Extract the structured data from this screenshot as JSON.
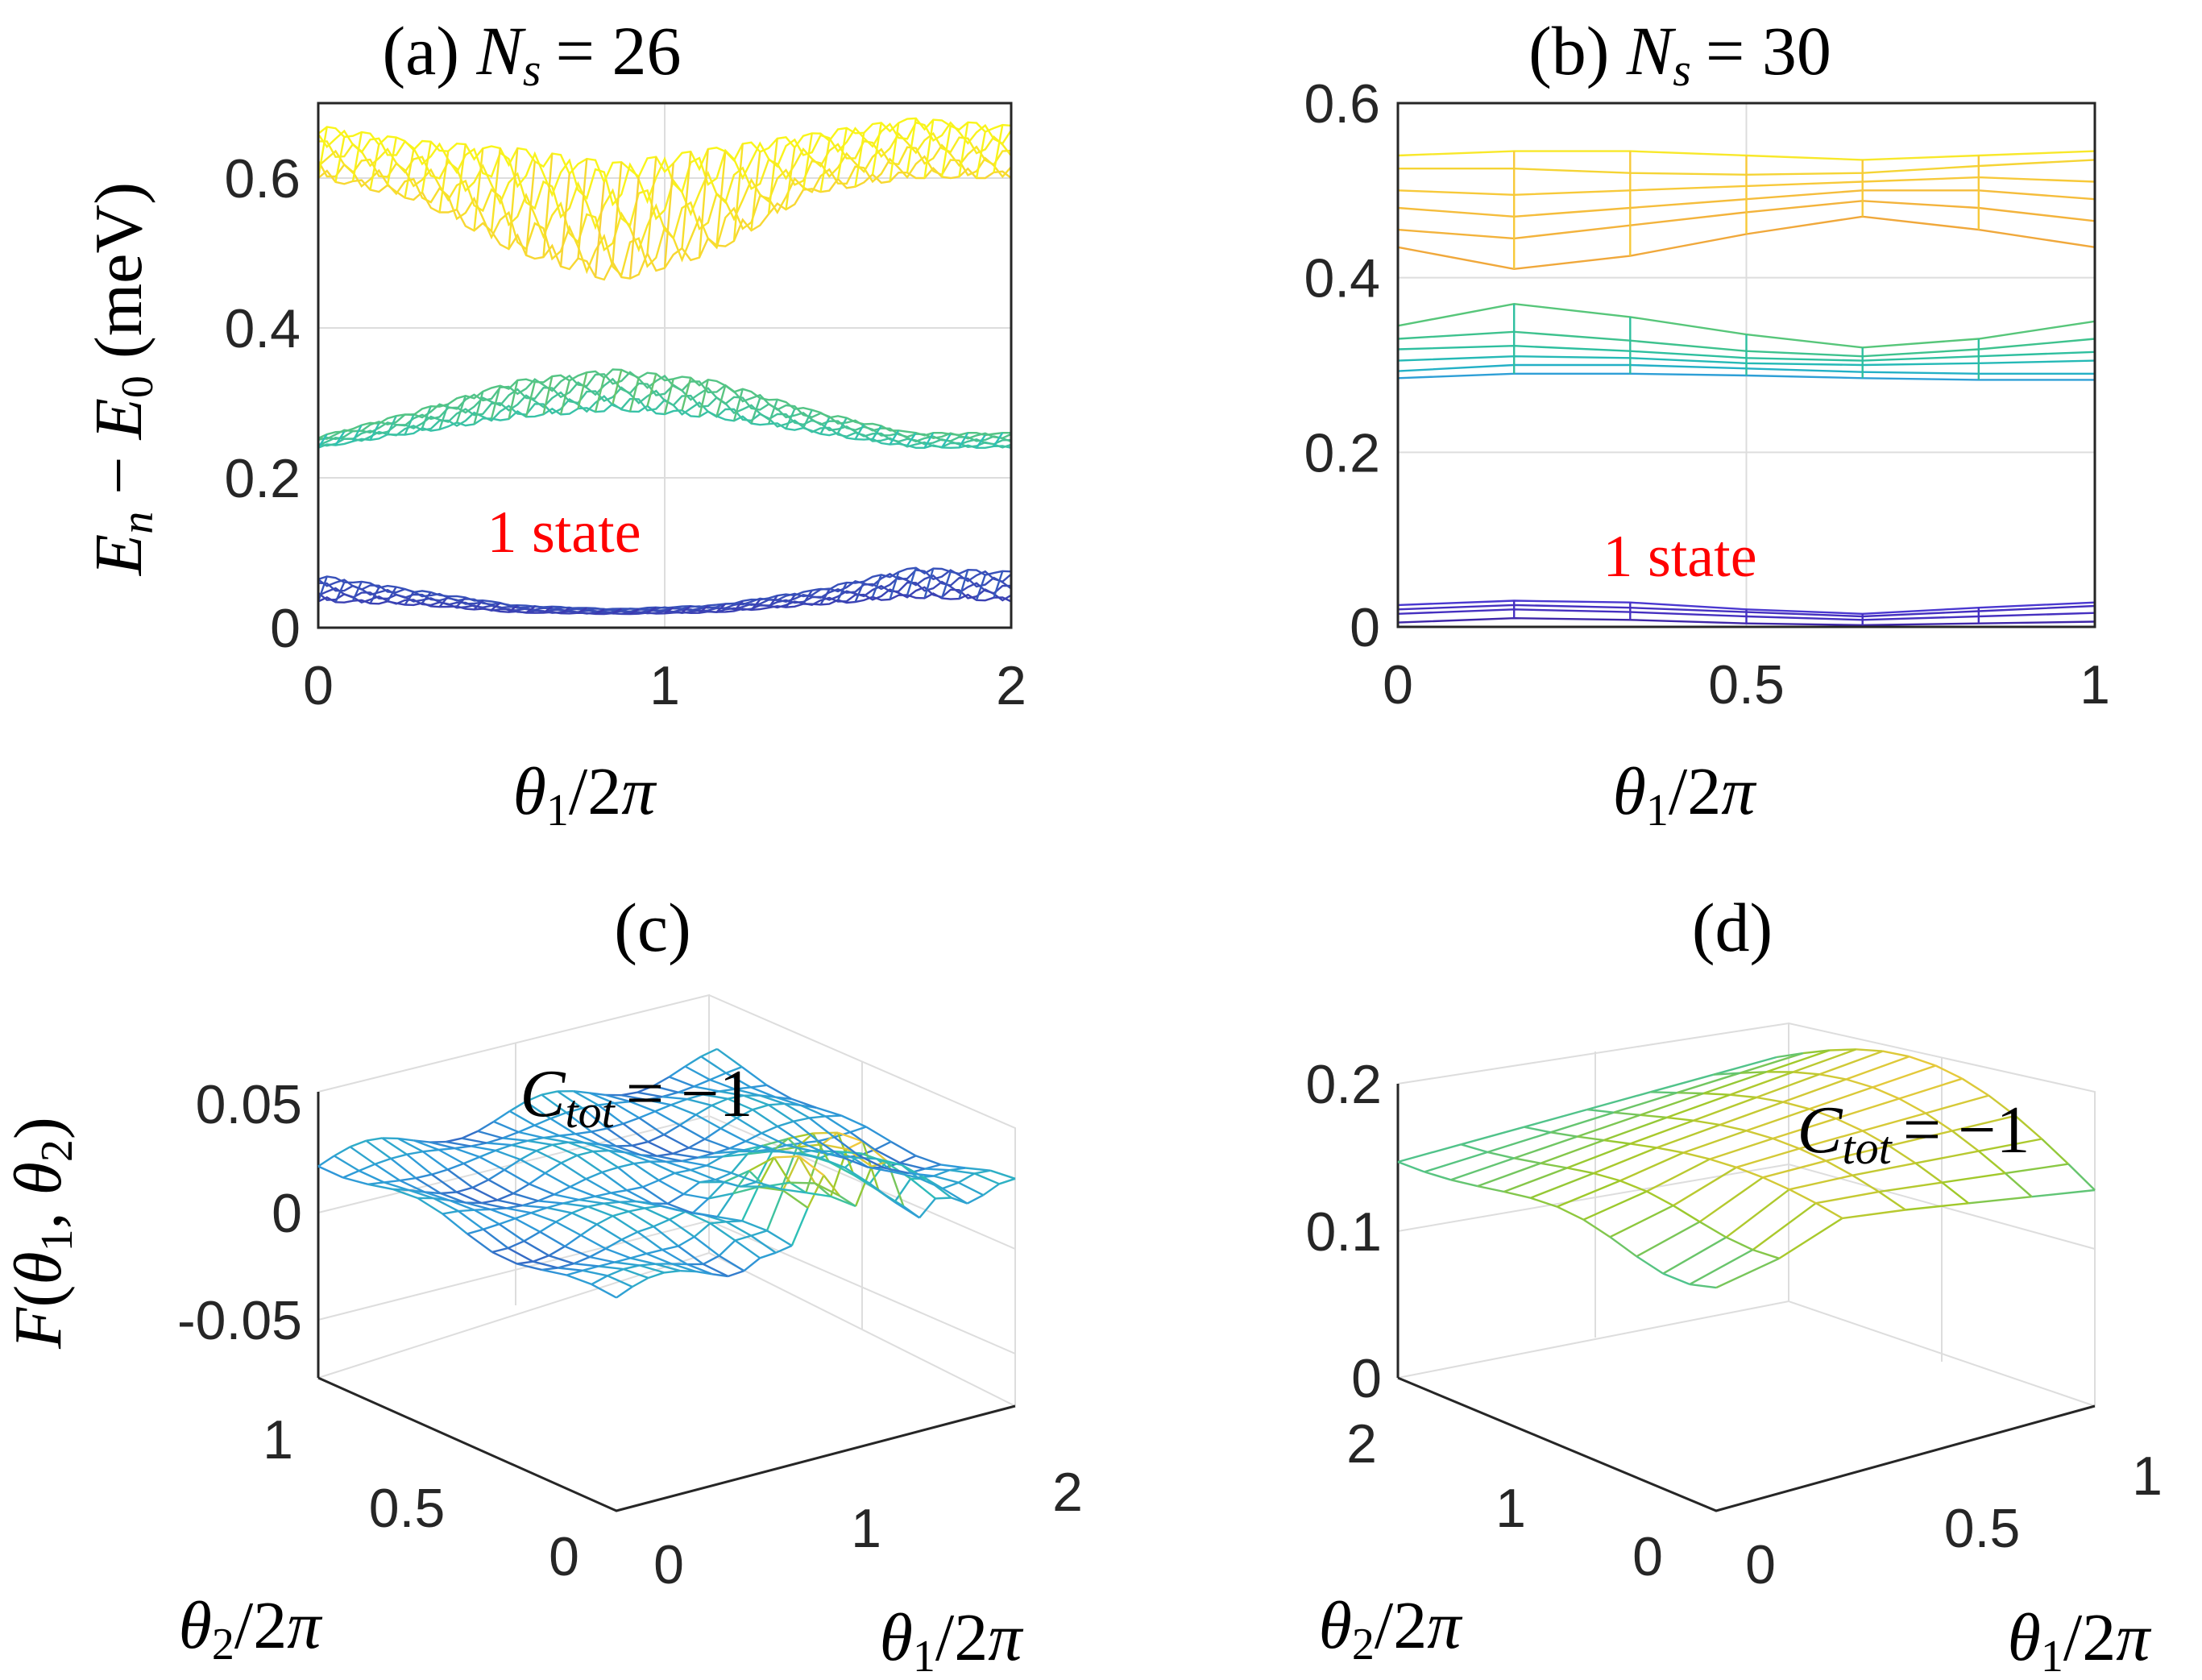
{
  "colors": {
    "low": "#3e26a8",
    "mid_low": "#2f9ad9",
    "mid": "#2ec1b4",
    "mid_high": "#9fc92a",
    "high": "#f6c93f",
    "top": "#f9f51a",
    "annotation": "#ff0000"
  },
  "chart_data": [
    {
      "id": "a",
      "type": "line",
      "title": "(a) N_s = 26",
      "title_prefix": "(a) ",
      "title_var": "N",
      "title_sub": "s",
      "title_value": "= 26",
      "xlabel": "θ1/2π",
      "ylabel": "En − E0 (meV)",
      "xlim": [
        0,
        2
      ],
      "ylim": [
        0,
        0.7
      ],
      "xticks": [
        "0",
        "1",
        "2"
      ],
      "yticks": [
        "0",
        "0.2",
        "0.4",
        "0.6"
      ],
      "annotation": "1 state",
      "bands": [
        {
          "name": "ground",
          "lower": [
            0.035,
            0.03,
            0.02,
            0.018,
            0.02,
            0.03,
            0.04,
            0.035
          ],
          "upper": [
            0.07,
            0.05,
            0.03,
            0.025,
            0.03,
            0.05,
            0.08,
            0.075
          ],
          "color": "#4428c8"
        },
        {
          "name": "second",
          "lower": [
            0.24,
            0.26,
            0.28,
            0.29,
            0.28,
            0.26,
            0.24,
            0.24
          ],
          "upper": [
            0.255,
            0.29,
            0.33,
            0.345,
            0.33,
            0.29,
            0.26,
            0.26
          ],
          "color": "#2aa6dc"
        },
        {
          "name": "third",
          "lower": [
            0.6,
            0.57,
            0.5,
            0.46,
            0.5,
            0.58,
            0.6,
            0.6
          ],
          "upper": [
            0.67,
            0.65,
            0.64,
            0.62,
            0.64,
            0.66,
            0.68,
            0.67
          ],
          "color": "#f2c23a"
        }
      ]
    },
    {
      "id": "b",
      "type": "line",
      "title": "(b) N_s = 30",
      "title_prefix": "(b) ",
      "title_var": "N",
      "title_sub": "s",
      "title_value": "= 30",
      "xlabel": "θ1/2π",
      "ylabel": "",
      "xlim": [
        0,
        1
      ],
      "ylim": [
        0,
        0.6
      ],
      "xticks": [
        "0",
        "0.5",
        "1"
      ],
      "yticks": [
        "0",
        "0.2",
        "0.4",
        "0.6"
      ],
      "annotation": "1 state",
      "x": [
        0,
        0.1667,
        0.3333,
        0.5,
        0.6667,
        0.8333,
        1
      ],
      "series": [
        {
          "name": "g1",
          "values": [
            0.005,
            0.01,
            0.008,
            0.004,
            0.002,
            0.004,
            0.006
          ],
          "color": "#3e26a8"
        },
        {
          "name": "g2",
          "values": [
            0.015,
            0.02,
            0.017,
            0.012,
            0.008,
            0.012,
            0.016
          ],
          "color": "#4530c0"
        },
        {
          "name": "g3",
          "values": [
            0.02,
            0.025,
            0.022,
            0.017,
            0.012,
            0.018,
            0.024
          ],
          "color": "#4530c0"
        },
        {
          "name": "g4",
          "values": [
            0.025,
            0.03,
            0.028,
            0.02,
            0.015,
            0.022,
            0.028
          ],
          "color": "#4a38d0"
        },
        {
          "name": "m1",
          "values": [
            0.285,
            0.29,
            0.29,
            0.288,
            0.285,
            0.283,
            0.283
          ],
          "color": "#2e9fd6"
        },
        {
          "name": "m2",
          "values": [
            0.293,
            0.3,
            0.3,
            0.296,
            0.292,
            0.29,
            0.29
          ],
          "color": "#23b0c6"
        },
        {
          "name": "m3",
          "values": [
            0.305,
            0.31,
            0.308,
            0.302,
            0.3,
            0.302,
            0.305
          ],
          "color": "#25b9b6"
        },
        {
          "name": "m4",
          "values": [
            0.318,
            0.322,
            0.316,
            0.308,
            0.305,
            0.31,
            0.315
          ],
          "color": "#2ebf9f"
        },
        {
          "name": "m5",
          "values": [
            0.33,
            0.338,
            0.328,
            0.316,
            0.31,
            0.318,
            0.33
          ],
          "color": "#3ec28e"
        },
        {
          "name": "m6",
          "values": [
            0.345,
            0.37,
            0.355,
            0.335,
            0.32,
            0.33,
            0.35
          ],
          "color": "#57c67a"
        },
        {
          "name": "h1",
          "values": [
            0.435,
            0.41,
            0.425,
            0.45,
            0.47,
            0.455,
            0.435
          ],
          "color": "#f0a83b"
        },
        {
          "name": "h2",
          "values": [
            0.455,
            0.445,
            0.46,
            0.475,
            0.488,
            0.48,
            0.465
          ],
          "color": "#f3b33c"
        },
        {
          "name": "h3",
          "values": [
            0.48,
            0.47,
            0.48,
            0.49,
            0.5,
            0.5,
            0.49
          ],
          "color": "#f5bd3c"
        },
        {
          "name": "h4",
          "values": [
            0.5,
            0.495,
            0.5,
            0.505,
            0.51,
            0.515,
            0.51
          ],
          "color": "#f7c93a"
        },
        {
          "name": "h5",
          "values": [
            0.525,
            0.525,
            0.52,
            0.518,
            0.52,
            0.528,
            0.535
          ],
          "color": "#f5d435"
        },
        {
          "name": "h6",
          "values": [
            0.54,
            0.545,
            0.545,
            0.54,
            0.535,
            0.54,
            0.545
          ],
          "color": "#f8e82a"
        }
      ]
    },
    {
      "id": "c",
      "type": "surface",
      "title": "(c)",
      "zlabel": "F(θ1, θ2)",
      "xlabel": "θ1/2π",
      "ylabel": "θ2/2π",
      "xticks": [
        "0",
        "1",
        "2"
      ],
      "yticks": [
        "0",
        "0.5",
        "1"
      ],
      "zticks": [
        "-0.05",
        "0",
        "0.05"
      ],
      "xlim": [
        0,
        2
      ],
      "ylim": [
        0,
        1
      ],
      "zlim": [
        -0.08,
        0.06
      ],
      "annotation_var": "C",
      "annotation_sub": "tot",
      "annotation_value": "= −1",
      "grid_size": [
        26,
        13
      ]
    },
    {
      "id": "d",
      "type": "surface",
      "title": "(d)",
      "zlabel": "",
      "xlabel": "θ1/2π",
      "ylabel": "θ2/2π",
      "xticks": [
        "0",
        "0.5",
        "1"
      ],
      "yticks": [
        "0",
        "1",
        "2"
      ],
      "zticks": [
        "0",
        "0.1",
        "0.2"
      ],
      "xlim": [
        0,
        1
      ],
      "ylim": [
        0,
        2
      ],
      "zlim": [
        0,
        0.2
      ],
      "annotation_var": "C",
      "annotation_sub": "tot",
      "annotation_value": "= −1",
      "grid_size": [
        7,
        13
      ]
    }
  ]
}
